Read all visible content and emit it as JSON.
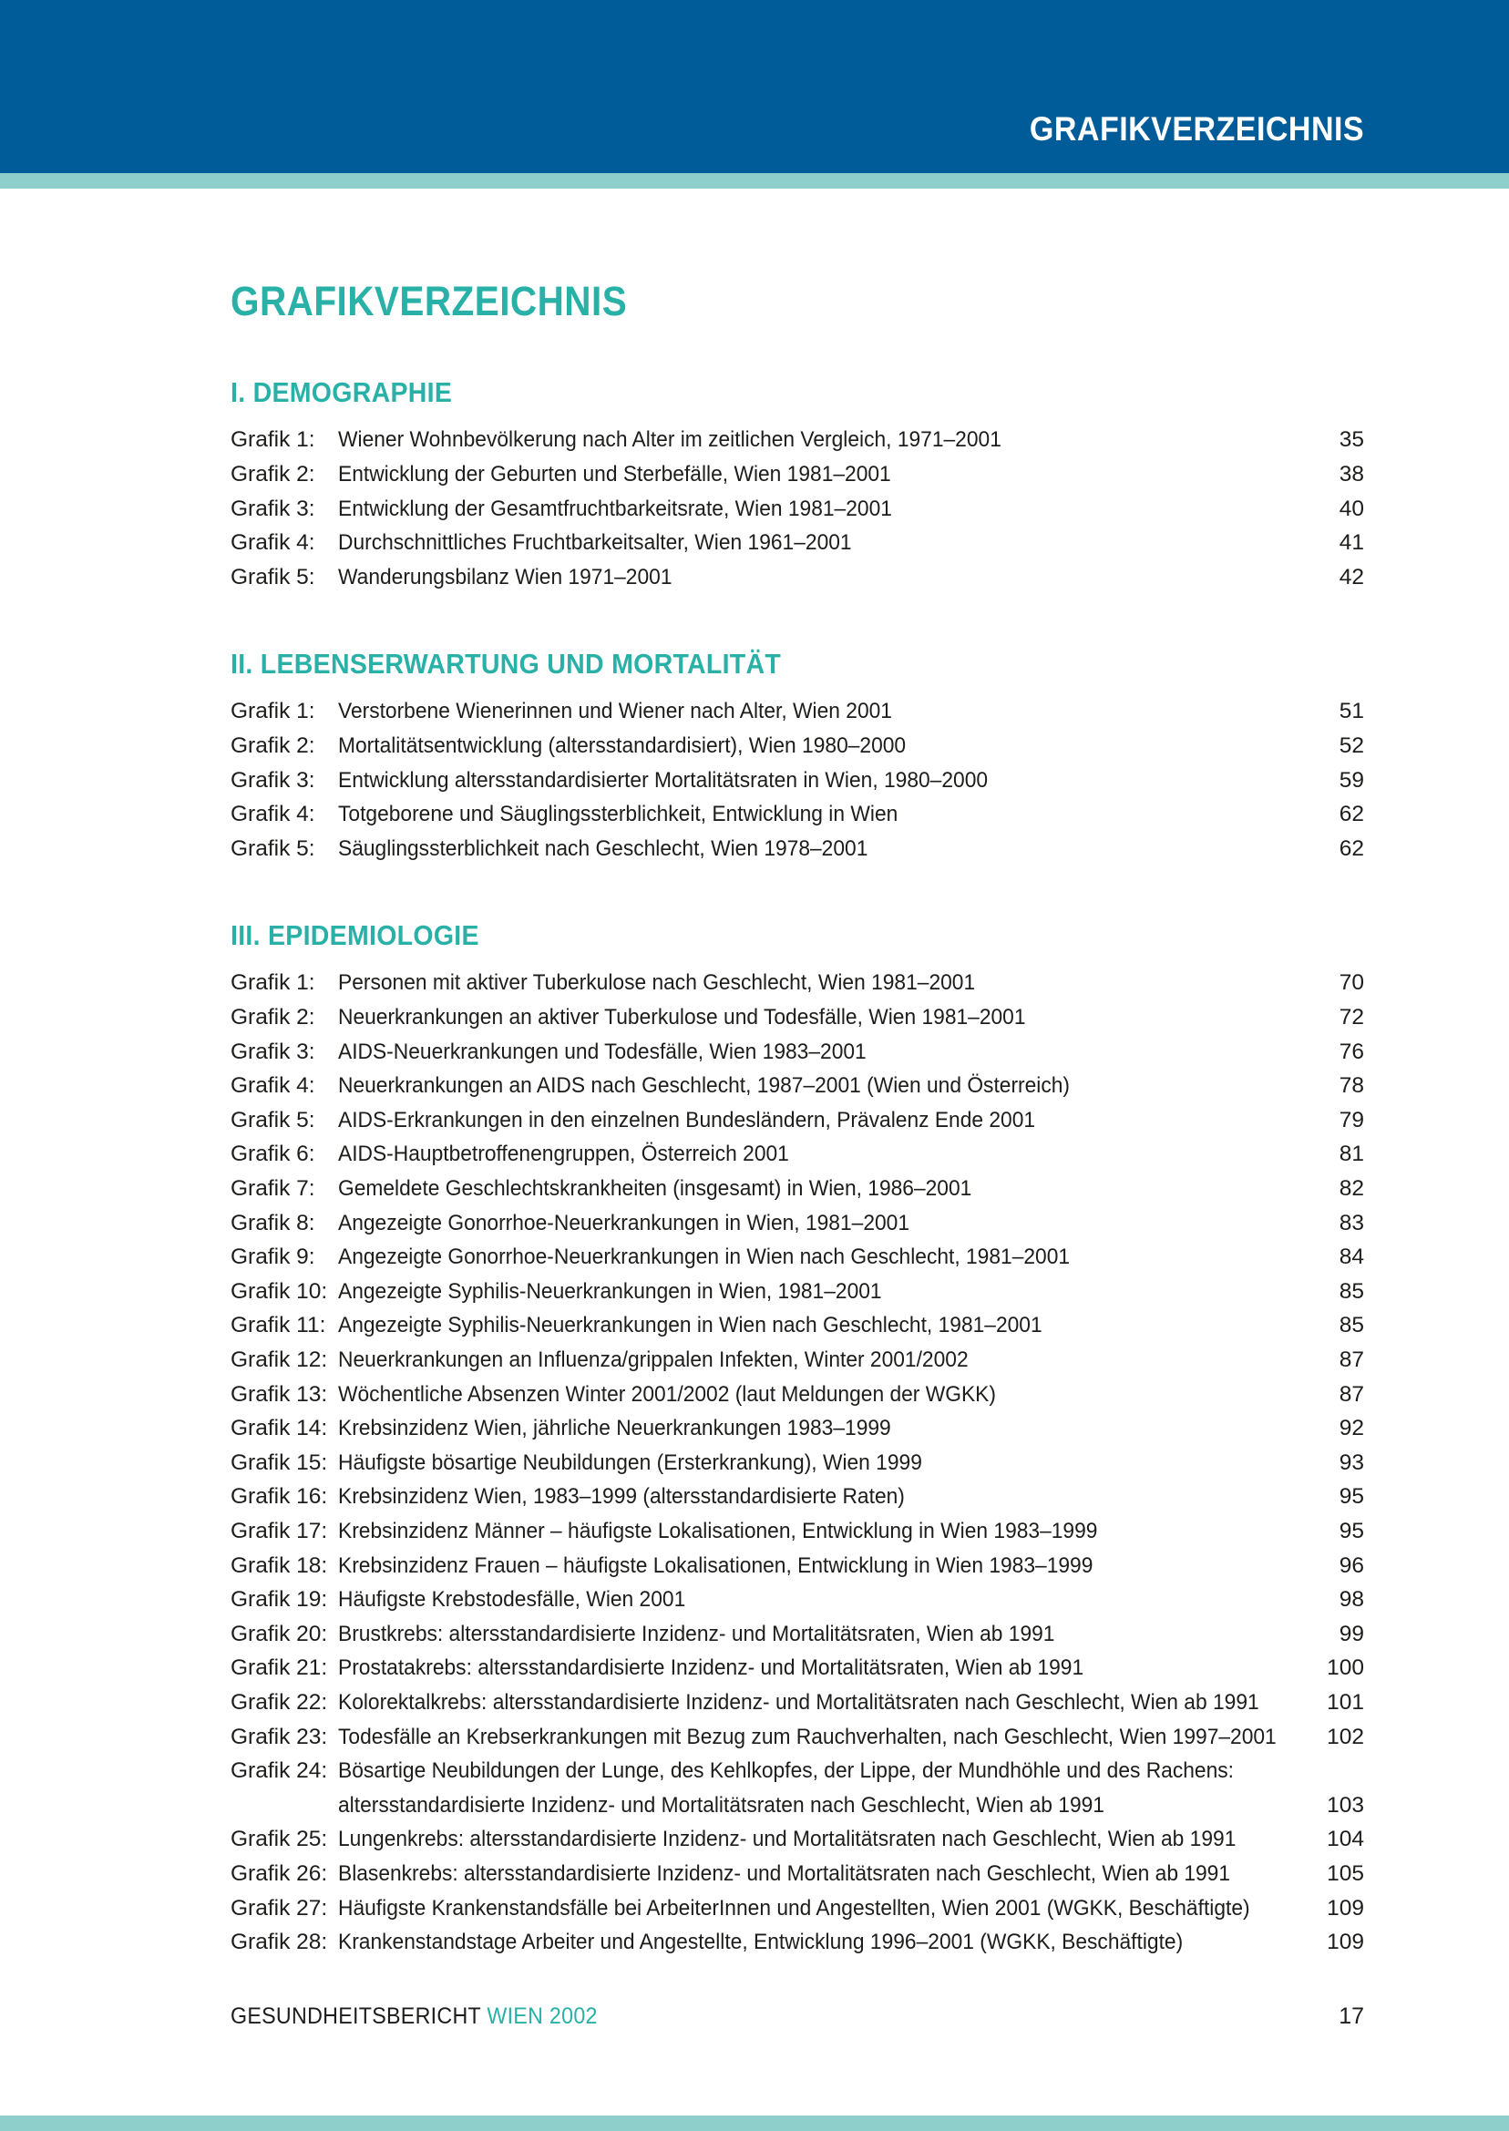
{
  "header": {
    "title": "GRAFIKVERZEICHNIS"
  },
  "title": "GRAFIKVERZEICHNIS",
  "sections": [
    {
      "heading": "I. DEMOGRAPHIE",
      "entries": [
        {
          "label": "Grafik 1:",
          "lines": [
            "Wiener Wohnbevölkerung nach Alter im zeitlichen Vergleich, 1971–2001"
          ],
          "page": "35"
        },
        {
          "label": "Grafik 2:",
          "lines": [
            "Entwicklung der Geburten und Sterbefälle, Wien 1981–2001"
          ],
          "page": "38"
        },
        {
          "label": "Grafik 3:",
          "lines": [
            "Entwicklung der Gesamtfruchtbarkeitsrate, Wien 1981–2001"
          ],
          "page": "40"
        },
        {
          "label": "Grafik 4:",
          "lines": [
            "Durchschnittliches Fruchtbarkeitsalter, Wien 1961–2001"
          ],
          "page": "41"
        },
        {
          "label": "Grafik 5:",
          "lines": [
            "Wanderungsbilanz Wien 1971–2001"
          ],
          "page": "42"
        }
      ]
    },
    {
      "heading": "II. LEBENSERWARTUNG UND MORTALITÄT",
      "entries": [
        {
          "label": "Grafik 1:",
          "lines": [
            "Verstorbene Wienerinnen und Wiener nach Alter, Wien 2001"
          ],
          "page": "51"
        },
        {
          "label": "Grafik 2:",
          "lines": [
            "Mortalitätsentwicklung (altersstandardisiert), Wien 1980–2000"
          ],
          "page": "52"
        },
        {
          "label": "Grafik 3:",
          "lines": [
            "Entwicklung altersstandardisierter Mortalitätsraten in Wien, 1980–2000"
          ],
          "page": "59"
        },
        {
          "label": "Grafik 4:",
          "lines": [
            "Totgeborene und Säuglingssterblichkeit, Entwicklung in Wien"
          ],
          "page": "62"
        },
        {
          "label": "Grafik 5:",
          "lines": [
            "Säuglingssterblichkeit nach Geschlecht, Wien 1978–2001"
          ],
          "page": "62"
        }
      ]
    },
    {
      "heading": "III. EPIDEMIOLOGIE",
      "entries": [
        {
          "label": "Grafik 1:",
          "lines": [
            "Personen mit aktiver Tuberkulose nach Geschlecht, Wien 1981–2001"
          ],
          "page": "70"
        },
        {
          "label": "Grafik 2:",
          "lines": [
            "Neuerkrankungen an aktiver Tuberkulose und Todesfälle, Wien 1981–2001"
          ],
          "page": "72"
        },
        {
          "label": "Grafik 3:",
          "lines": [
            "AIDS-Neuerkrankungen und Todesfälle, Wien 1983–2001"
          ],
          "page": "76"
        },
        {
          "label": "Grafik 4:",
          "lines": [
            "Neuerkrankungen an AIDS nach Geschlecht, 1987–2001 (Wien und Österreich)"
          ],
          "page": "78"
        },
        {
          "label": "Grafik 5:",
          "lines": [
            "AIDS-Erkrankungen in den einzelnen Bundesländern, Prävalenz Ende 2001"
          ],
          "page": "79"
        },
        {
          "label": "Grafik 6:",
          "lines": [
            "AIDS-Hauptbetroffenengruppen, Österreich 2001"
          ],
          "page": "81"
        },
        {
          "label": "Grafik 7:",
          "lines": [
            "Gemeldete Geschlechtskrankheiten (insgesamt) in Wien, 1986–2001"
          ],
          "page": "82"
        },
        {
          "label": "Grafik 8:",
          "lines": [
            "Angezeigte Gonorrhoe-Neuerkrankungen in Wien, 1981–2001"
          ],
          "page": "83"
        },
        {
          "label": "Grafik 9:",
          "lines": [
            "Angezeigte Gonorrhoe-Neuerkrankungen in Wien nach Geschlecht, 1981–2001"
          ],
          "page": "84"
        },
        {
          "label": "Grafik 10:",
          "lines": [
            "Angezeigte Syphilis-Neuerkrankungen in Wien, 1981–2001"
          ],
          "page": "85"
        },
        {
          "label": "Grafik 11:",
          "lines": [
            "Angezeigte Syphilis-Neuerkrankungen in Wien nach Geschlecht, 1981–2001"
          ],
          "page": "85"
        },
        {
          "label": "Grafik 12:",
          "lines": [
            "Neuerkrankungen an Influenza/grippalen Infekten, Winter 2001/2002"
          ],
          "page": "87"
        },
        {
          "label": "Grafik 13:",
          "lines": [
            "Wöchentliche Absenzen Winter 2001/2002 (laut Meldungen der WGKK)"
          ],
          "page": "87"
        },
        {
          "label": "Grafik 14:",
          "lines": [
            "Krebsinzidenz Wien, jährliche Neuerkrankungen 1983–1999"
          ],
          "page": "92"
        },
        {
          "label": "Grafik 15:",
          "lines": [
            "Häufigste bösartige Neubildungen (Ersterkrankung), Wien 1999"
          ],
          "page": "93"
        },
        {
          "label": "Grafik 16:",
          "lines": [
            "Krebsinzidenz Wien, 1983–1999 (altersstandardisierte Raten)"
          ],
          "page": "95"
        },
        {
          "label": "Grafik 17:",
          "lines": [
            "Krebsinzidenz Männer – häufigste Lokalisationen, Entwicklung in Wien 1983–1999"
          ],
          "page": "95"
        },
        {
          "label": "Grafik 18:",
          "lines": [
            "Krebsinzidenz Frauen – häufigste Lokalisationen, Entwicklung in Wien 1983–1999"
          ],
          "page": "96"
        },
        {
          "label": "Grafik 19:",
          "lines": [
            "Häufigste Krebstodesfälle, Wien 2001"
          ],
          "page": "98"
        },
        {
          "label": "Grafik 20:",
          "lines": [
            "Brustkrebs: altersstandardisierte Inzidenz- und Mortalitätsraten, Wien ab 1991"
          ],
          "page": "99"
        },
        {
          "label": "Grafik 21:",
          "lines": [
            "Prostatakrebs: altersstandardisierte Inzidenz- und Mortalitätsraten, Wien ab 1991"
          ],
          "page": "100"
        },
        {
          "label": "Grafik 22:",
          "lines": [
            "Kolorektalkrebs: altersstandardisierte Inzidenz- und Mortalitätsraten nach Geschlecht, Wien ab 1991"
          ],
          "page": "101"
        },
        {
          "label": "Grafik 23:",
          "lines": [
            "Todesfälle an Krebserkrankungen mit Bezug zum Rauchverhalten, nach Geschlecht, Wien 1997–2001"
          ],
          "page": "102"
        },
        {
          "label": "Grafik 24:",
          "lines": [
            "Bösartige Neubildungen der Lunge, des Kehlkopfes, der Lippe, der Mundhöhle und des Rachens:",
            "altersstandardisierte Inzidenz- und Mortalitätsraten nach Geschlecht, Wien ab 1991"
          ],
          "page": "103"
        },
        {
          "label": "Grafik 25:",
          "lines": [
            "Lungenkrebs: altersstandardisierte Inzidenz- und Mortalitätsraten nach Geschlecht, Wien ab 1991"
          ],
          "page": "104"
        },
        {
          "label": "Grafik 26:",
          "lines": [
            "Blasenkrebs: altersstandardisierte Inzidenz- und Mortalitätsraten nach Geschlecht, Wien ab 1991"
          ],
          "page": "105"
        },
        {
          "label": "Grafik 27:",
          "lines": [
            "Häufigste Krankenstandsfälle bei ArbeiterInnen und Angestellten, Wien 2001 (WGKK, Beschäftigte)"
          ],
          "page": "109"
        },
        {
          "label": "Grafik 28:",
          "lines": [
            "Krankenstandstage Arbeiter und Angestellte, Entwicklung 1996–2001 (WGKK, Beschäftigte)"
          ],
          "page": "109"
        }
      ]
    }
  ],
  "footer": {
    "report": "GESUNDHEITSBERICHT",
    "edition": "WIEN 2002",
    "page_number": "17"
  },
  "colors": {
    "header_blue": "#005b99",
    "stripe_teal": "#8ecfcb",
    "accent_teal": "#29b1a7",
    "text": "#1d1d1b"
  }
}
